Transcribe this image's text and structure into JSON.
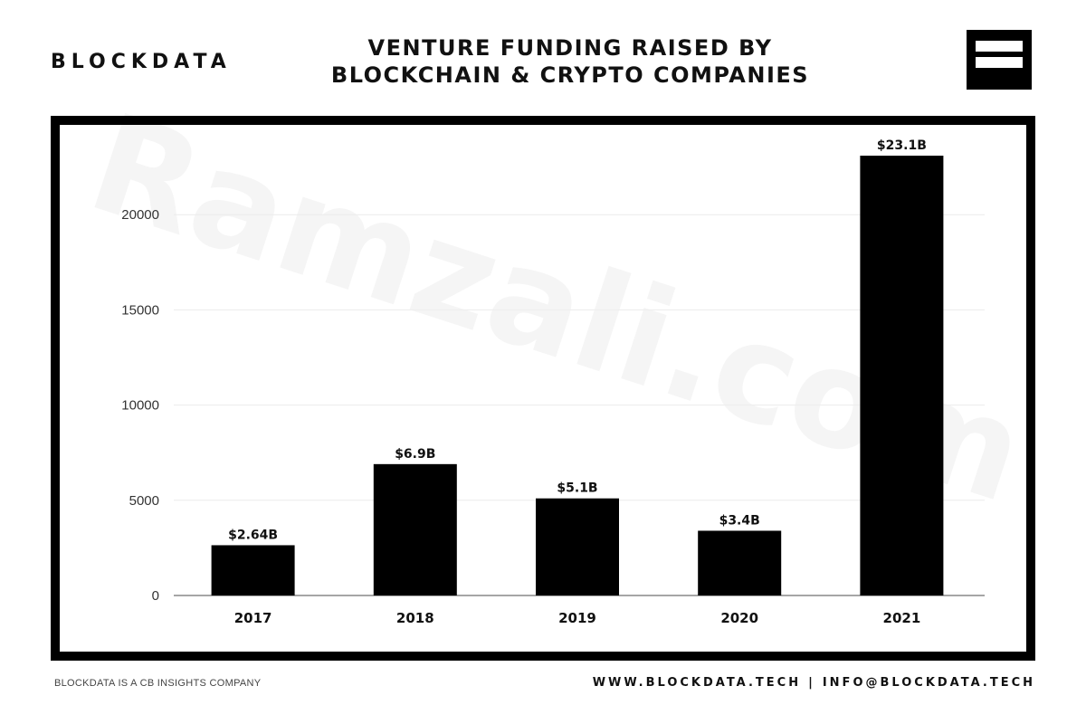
{
  "header": {
    "brand": "BLOCKDATA",
    "title_line1": "VENTURE FUNDING RAISED BY",
    "title_line2": "BLOCKCHAIN & CRYPTO COMPANIES",
    "logo_icon": "blockdata-logo-icon"
  },
  "footer": {
    "left": "BLOCKDATA IS A CB INSIGHTS COMPANY",
    "website": "WWW.BLOCKDATA.TECH",
    "separator": "|",
    "email": "INFO@BLOCKDATA.TECH"
  },
  "watermark": "Ramzali.com",
  "colors": {
    "bar": "#000000",
    "frame": "#000000",
    "grid": "#ececec",
    "axis": "#888888"
  },
  "chart_data": {
    "type": "bar",
    "categories": [
      "2017",
      "2018",
      "2019",
      "2020",
      "2021"
    ],
    "values": [
      2640,
      6900,
      5100,
      3400,
      23100
    ],
    "data_labels": [
      "$2.64B",
      "$6.9B",
      "$5.1B",
      "$3.4B",
      "$23.1B"
    ],
    "yticks": [
      0,
      5000,
      10000,
      15000,
      20000
    ],
    "ylim": [
      0,
      23100
    ],
    "grid": true,
    "legend": "none",
    "title": "VENTURE FUNDING RAISED BY BLOCKCHAIN & CRYPTO COMPANIES",
    "xlabel": "",
    "ylabel": ""
  }
}
